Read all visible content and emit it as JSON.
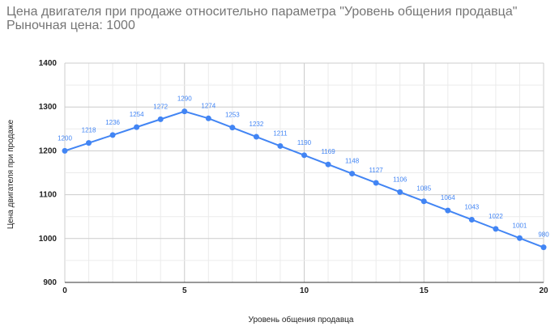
{
  "chart_data": {
    "type": "line",
    "title": "Цена двигателя при продаже относительно параметра \"Уровень общения продавца\"",
    "subtitle": "Рыночная цена: 1000",
    "xlabel": "Уровень общения продавца",
    "ylabel": "Цена двигателя при продаже",
    "xlim": [
      0,
      20
    ],
    "ylim": [
      900,
      1400
    ],
    "xticks": [
      0,
      5,
      10,
      15,
      20
    ],
    "yticks": [
      900,
      1000,
      1100,
      1200,
      1300,
      1400
    ],
    "grid": true,
    "color": "#4285f4",
    "x": [
      0,
      1,
      2,
      3,
      4,
      5,
      6,
      7,
      8,
      9,
      10,
      11,
      12,
      13,
      14,
      15,
      16,
      17,
      18,
      19,
      20
    ],
    "values": [
      1200,
      1218,
      1236,
      1254,
      1272,
      1290,
      1274,
      1253,
      1232,
      1211,
      1190,
      1169,
      1148,
      1127,
      1106,
      1085,
      1064,
      1043,
      1022,
      1001,
      980
    ]
  }
}
